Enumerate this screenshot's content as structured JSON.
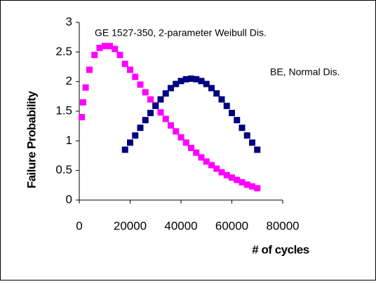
{
  "chart_data": {
    "type": "scatter",
    "xlabel": "# of cycles",
    "ylabel": "Failure Probability",
    "annotations": [
      "GE 1527-350, 2-parameter Weibull Dis.",
      "BE, Normal Dis."
    ],
    "xlim": [
      0,
      80000
    ],
    "xticks": [
      0,
      20000,
      40000,
      60000,
      80000
    ],
    "ylim": [
      0,
      3
    ],
    "yticks": [
      0,
      0.5,
      1,
      1.5,
      2,
      2.5,
      3
    ],
    "series": [
      {
        "color": "#ff00ff",
        "x": [
          1000,
          1500,
          2500,
          4000,
          6000,
          8000,
          10000,
          12000,
          14000,
          16000,
          18000,
          20000,
          22000,
          24000,
          26000,
          28000,
          30000,
          32000,
          34000,
          36000,
          38000,
          40000,
          42000,
          44000,
          46000,
          48000,
          50000,
          52000,
          54000,
          56000,
          58000,
          60000,
          62000,
          64000,
          66000,
          68000,
          70000
        ],
        "values": [
          1.4,
          1.65,
          1.9,
          2.2,
          2.45,
          2.57,
          2.6,
          2.6,
          2.55,
          2.45,
          2.3,
          2.2,
          2.08,
          1.95,
          1.82,
          1.7,
          1.6,
          1.48,
          1.37,
          1.26,
          1.16,
          1.06,
          0.97,
          0.88,
          0.8,
          0.72,
          0.65,
          0.59,
          0.53,
          0.47,
          0.42,
          0.38,
          0.34,
          0.3,
          0.26,
          0.23,
          0.2
        ]
      },
      {
        "color": "#000080",
        "x": [
          18000,
          20000,
          22000,
          24000,
          26000,
          28000,
          30000,
          32000,
          34000,
          36000,
          38000,
          40000,
          42000,
          44000,
          46000,
          48000,
          50000,
          52000,
          54000,
          56000,
          58000,
          60000,
          62000,
          64000,
          66000,
          68000,
          70000
        ],
        "values": [
          0.85,
          0.97,
          1.09,
          1.22,
          1.35,
          1.47,
          1.59,
          1.7,
          1.8,
          1.89,
          1.96,
          2.01,
          2.04,
          2.05,
          2.04,
          2.01,
          1.96,
          1.89,
          1.8,
          1.7,
          1.59,
          1.47,
          1.35,
          1.22,
          1.09,
          0.97,
          0.85
        ]
      }
    ]
  }
}
